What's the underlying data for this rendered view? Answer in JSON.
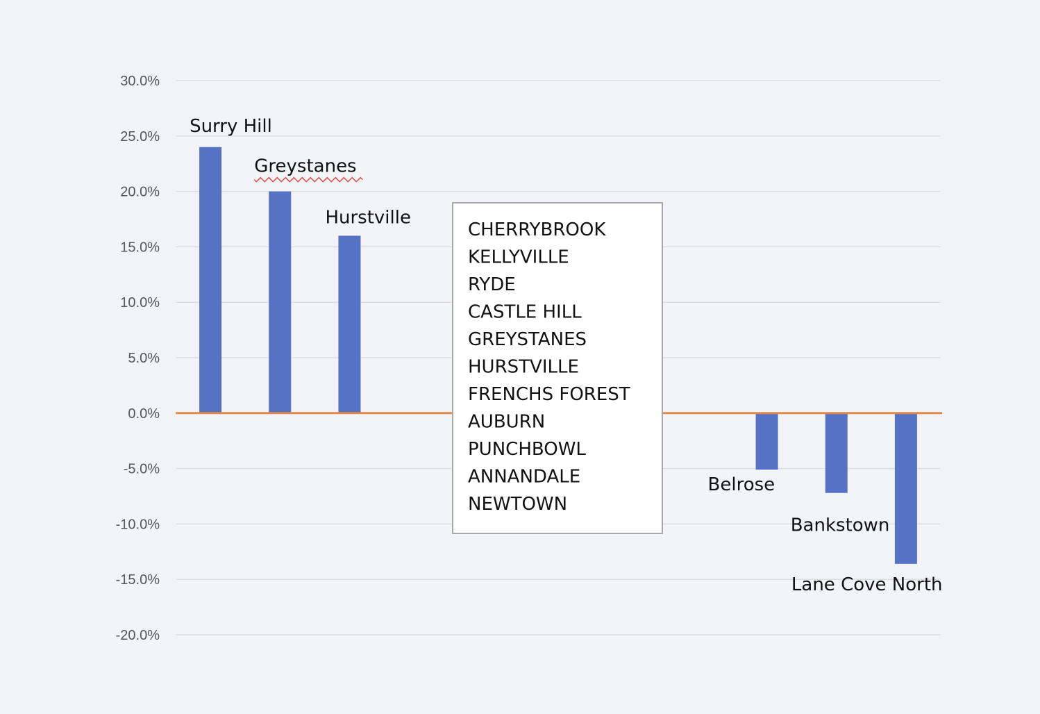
{
  "chart_data": {
    "type": "bar",
    "categories": [
      "Surry Hill",
      "Greystanes",
      "Hurstville",
      "",
      "",
      "",
      "",
      "",
      "Belrose",
      "Bankstown",
      "Lane Cove North"
    ],
    "values": [
      24.0,
      20.0,
      16.0,
      0,
      0,
      0,
      0,
      0,
      -5.1,
      -7.2,
      -13.6
    ],
    "ylim": [
      -20,
      30
    ],
    "yticks": [
      "30.0%",
      "25.0%",
      "20.0%",
      "15.0%",
      "10.0%",
      "5.0%",
      "0.0%",
      "-5.0%",
      "-10.0%",
      "-15.0%",
      "-20.0%"
    ],
    "grid": true,
    "colors": {
      "bar": "#5572c4",
      "zero_line": "#e0894a",
      "grid": "#dcdde3",
      "background": "#f3f4f8"
    },
    "annotation_box": {
      "lines": [
        "CHERRYBROOK",
        "KELLYVILLE",
        "RYDE",
        "CASTLE HILL",
        "GREYSTANES",
        "HURSTVILLE",
        "FRENCHS FOREST",
        "AUBURN",
        "PUNCHBOWL",
        "ANNANDALE",
        "NEWTOWN"
      ]
    },
    "spellcheck_underlined": [
      "Greystanes"
    ]
  }
}
